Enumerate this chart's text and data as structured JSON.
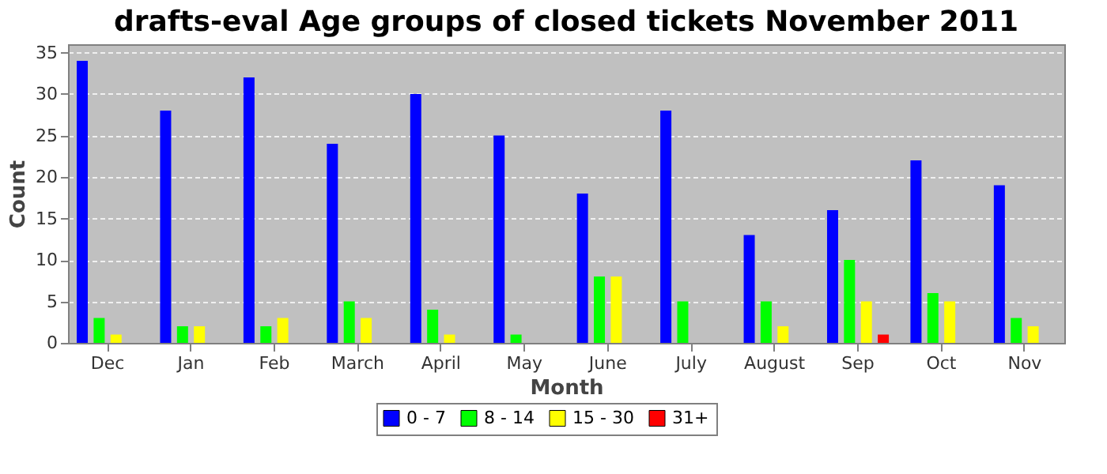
{
  "chart_data": {
    "type": "bar",
    "title": "drafts-eval Age groups of closed tickets November 2011",
    "xlabel": "Month",
    "ylabel": "Count",
    "categories": [
      "Dec",
      "Jan",
      "Feb",
      "March",
      "April",
      "May",
      "June",
      "July",
      "August",
      "Sep",
      "Oct",
      "Nov"
    ],
    "series": [
      {
        "name": "0 - 7",
        "color": "#0000ff",
        "values": [
          34,
          28,
          32,
          24,
          30,
          25,
          18,
          28,
          13,
          16,
          22,
          19
        ]
      },
      {
        "name": "8 - 14",
        "color": "#00ff00",
        "values": [
          3,
          2,
          2,
          5,
          4,
          1,
          8,
          5,
          5,
          10,
          6,
          3
        ]
      },
      {
        "name": "15 - 30",
        "color": "#ffff00",
        "values": [
          1,
          2,
          3,
          3,
          1,
          0,
          8,
          0,
          2,
          5,
          5,
          2
        ]
      },
      {
        "name": "31+",
        "color": "#ff0000",
        "values": [
          0,
          0,
          0,
          0,
          0,
          0,
          0,
          0,
          0,
          1,
          0,
          0
        ]
      }
    ],
    "ylim": [
      0,
      36
    ],
    "yticks": [
      0,
      5,
      10,
      15,
      20,
      25,
      30,
      35
    ],
    "grid": "y",
    "legend": "bottom"
  }
}
